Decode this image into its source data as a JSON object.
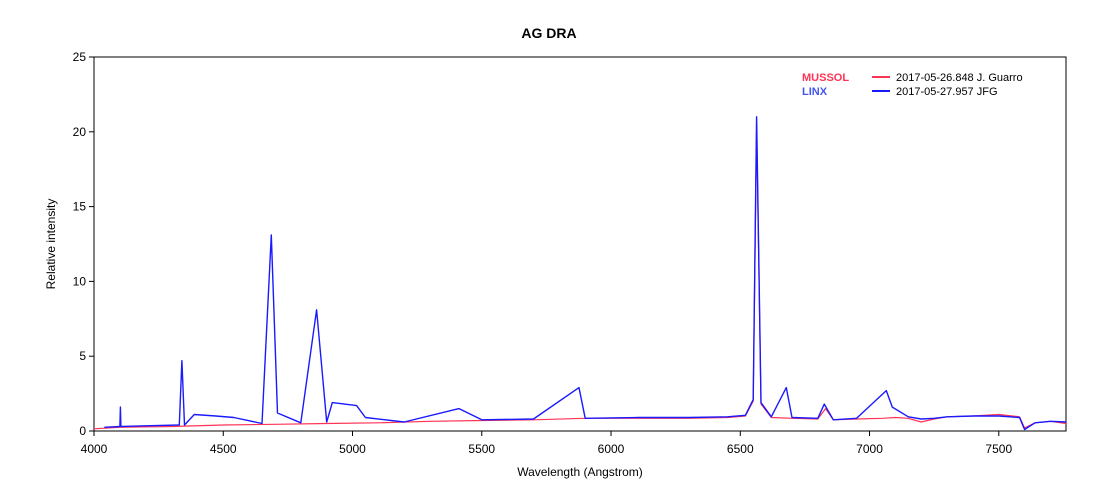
{
  "chart_data": {
    "type": "line",
    "title": "AG DRA",
    "xlabel": "Wavelength (Angstrom)",
    "ylabel": "Relative intensity",
    "xlim": [
      4000,
      7760
    ],
    "ylim": [
      0,
      25
    ],
    "x_ticks": [
      4000,
      4500,
      5000,
      5500,
      6000,
      6500,
      7000,
      7500
    ],
    "y_ticks": [
      0,
      5,
      10,
      15,
      20,
      25
    ],
    "grid": false,
    "legend_position": "top-right",
    "series": [
      {
        "instrument": "MUSSOL",
        "name": "2017-05-26.848  J. Guarro",
        "color": "#ff3355",
        "x": [
          4000,
          4100,
          4300,
          4500,
          4700,
          4900,
          5100,
          5300,
          5500,
          5700,
          5900,
          6100,
          6300,
          6450,
          6520,
          6550,
          6563,
          6580,
          6620,
          6700,
          6800,
          6830,
          6860,
          6950,
          7050,
          7100,
          7150,
          7200,
          7250,
          7300,
          7400,
          7500,
          7580,
          7600,
          7640,
          7700,
          7760
        ],
        "y": [
          0.15,
          0.25,
          0.3,
          0.4,
          0.45,
          0.5,
          0.55,
          0.65,
          0.7,
          0.75,
          0.85,
          0.85,
          0.85,
          0.9,
          1.0,
          2.0,
          20.5,
          1.8,
          0.9,
          0.85,
          0.8,
          1.5,
          0.75,
          0.8,
          0.85,
          0.9,
          0.85,
          0.6,
          0.8,
          0.95,
          1.0,
          1.1,
          0.95,
          0.2,
          0.55,
          0.65,
          0.5
        ]
      },
      {
        "instrument": "LINX",
        "name": "2017-05-27.957  JFG",
        "color": "#1a1aff",
        "x": [
          4040,
          4100,
          4102,
          4104,
          4200,
          4330,
          4340,
          4350,
          4388,
          4471,
          4541,
          4650,
          4686,
          4710,
          4800,
          4861,
          4900,
          4922,
          5016,
          5050,
          5200,
          5412,
          5500,
          5700,
          5876,
          5900,
          6100,
          6300,
          6450,
          6520,
          6550,
          6563,
          6580,
          6620,
          6678,
          6700,
          6800,
          6825,
          6860,
          6950,
          7065,
          7088,
          7150,
          7200,
          7250,
          7300,
          7400,
          7500,
          7580,
          7600,
          7640,
          7700,
          7760
        ],
        "y": [
          0.25,
          0.3,
          1.6,
          0.3,
          0.35,
          0.4,
          4.7,
          0.4,
          1.1,
          1.0,
          0.9,
          0.5,
          13.1,
          1.2,
          0.55,
          8.1,
          0.6,
          1.9,
          1.7,
          0.9,
          0.6,
          1.5,
          0.75,
          0.8,
          2.9,
          0.85,
          0.9,
          0.9,
          0.95,
          1.05,
          2.1,
          21.0,
          1.9,
          0.95,
          2.9,
          0.9,
          0.85,
          1.8,
          0.75,
          0.85,
          2.7,
          1.6,
          0.95,
          0.8,
          0.85,
          0.95,
          1.0,
          1.0,
          0.9,
          0.1,
          0.55,
          0.65,
          0.6
        ]
      }
    ]
  }
}
